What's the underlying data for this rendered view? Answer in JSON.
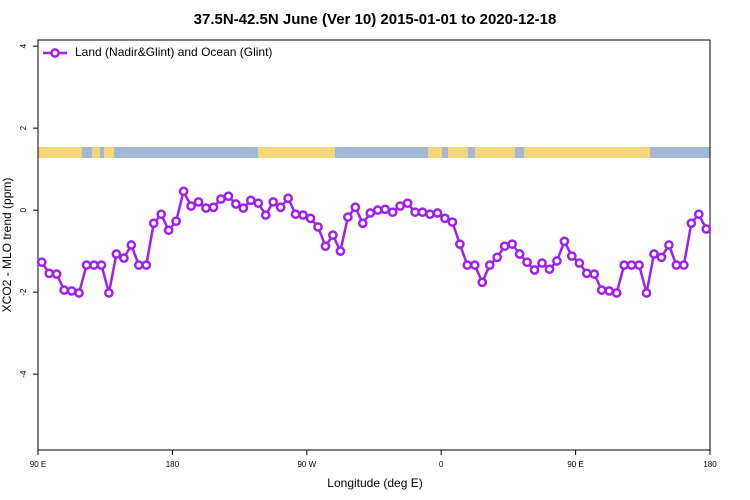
{
  "chart_data": {
    "type": "line",
    "title": "37.5N-42.5N June (Ver 10)   2015-01-01 to 2020-12-18",
    "x_label": "Longitude (deg E)",
    "y_label": "XCO2 - MLO trend (ppm)",
    "xlim": [
      90,
      540
    ],
    "ylim": [
      -5.85,
      4.15
    ],
    "xticks": [
      {
        "value": 90,
        "label": "90 E"
      },
      180,
      {
        "value": 270,
        "label": "90 W"
      },
      {
        "value": 360,
        "label": "0"
      },
      {
        "value": 450,
        "label": "90 E"
      },
      {
        "value": 540,
        "label": "180"
      }
    ],
    "yticks": [
      -4,
      -2,
      0,
      2,
      4
    ],
    "legend": "top-left",
    "x": [
      92.5,
      97.5,
      102.5,
      107.5,
      112.5,
      117.5,
      122.5,
      127.5,
      132.5,
      137.5,
      142.5,
      147.5,
      152.5,
      157.5,
      162.5,
      167.5,
      172.5,
      177.5,
      182.5,
      187.5,
      192.5,
      197.5,
      202.5,
      207.5,
      212.5,
      217.5,
      222.5,
      227.5,
      232.5,
      237.5,
      242.5,
      247.5,
      252.5,
      257.5,
      262.5,
      267.5,
      272.5,
      277.5,
      282.5,
      287.5,
      292.5,
      297.5,
      302.5,
      307.5,
      312.5,
      317.5,
      322.5,
      327.5,
      332.5,
      337.5,
      342.5,
      347.5,
      352.5,
      357.5,
      362.5,
      367.5,
      372.5,
      377.5,
      382.5,
      387.5,
      392.5,
      397.5,
      402.5,
      407.5,
      412.5,
      417.5,
      422.5,
      427.5,
      432.5,
      437.5,
      442.5,
      447.5,
      452.5,
      457.5,
      462.5,
      467.5,
      472.5,
      477.5,
      482.5,
      487.5,
      492.5,
      497.5,
      502.5,
      507.5,
      512.5,
      517.5,
      522.5,
      527.5,
      532.5,
      537.5
    ],
    "series": [
      {
        "name": "Land (Nadir&Glint) and Ocean (Glint)",
        "color": "#a020f0",
        "values": [
          -1.27,
          -1.54,
          -1.56,
          -1.95,
          -1.97,
          -2.02,
          -1.34,
          -1.34,
          -1.34,
          -2.02,
          -1.07,
          -1.17,
          -0.85,
          -1.34,
          -1.34,
          -0.32,
          -0.1,
          -0.49,
          -0.27,
          0.46,
          0.1,
          0.2,
          0.05,
          0.07,
          0.27,
          0.34,
          0.15,
          0.05,
          0.24,
          0.17,
          -0.12,
          0.2,
          0.07,
          0.29,
          -0.1,
          -0.12,
          -0.2,
          -0.41,
          -0.88,
          -0.61,
          -1.0,
          -0.17,
          0.07,
          -0.32,
          -0.07,
          0.0,
          0.02,
          -0.05,
          0.1,
          0.17,
          -0.05,
          -0.05,
          -0.1,
          -0.07,
          -0.2,
          -0.29,
          -0.83,
          -1.34,
          -1.34,
          -1.76,
          -1.34,
          -1.15,
          -0.88,
          -0.83,
          -1.07,
          -1.27,
          -1.46,
          -1.29,
          -1.44,
          -1.24,
          -0.76,
          -1.12,
          -1.29,
          -1.54,
          -1.56,
          -1.95,
          -1.97,
          -2.02,
          -1.34,
          -1.34,
          -1.34,
          -2.02,
          -1.07,
          -1.15,
          -0.85,
          -1.34,
          -1.34,
          -0.32,
          -0.1,
          -0.46
        ]
      }
    ]
  }
}
